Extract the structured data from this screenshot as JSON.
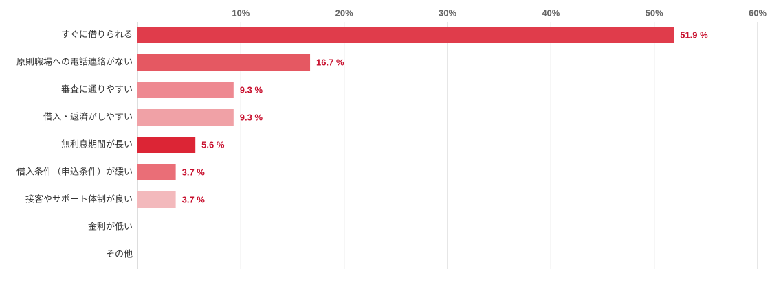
{
  "chart_data": {
    "type": "bar",
    "orientation": "horizontal",
    "categories": [
      "すぐに借りられる",
      "原則職場への電話連絡がない",
      "審査に通りやすい",
      "借入・返済がしやすい",
      "無利息期間が長い",
      "借入条件（申込条件）が緩い",
      "接客やサポート体制が良い",
      "金利が低い",
      "その他"
    ],
    "values": [
      51.9,
      16.7,
      9.3,
      9.3,
      5.6,
      3.7,
      3.7,
      null,
      null
    ],
    "value_labels": [
      "51.9 %",
      "16.7 %",
      "9.3 %",
      "9.3 %",
      "5.6 %",
      "3.7 %",
      "3.7 %",
      null,
      null
    ],
    "colors": [
      "#e03c4b",
      "#e55862",
      "#ee8991",
      "#f0a1a6",
      "#dc2535",
      "#ea6e77",
      "#f3b9bc",
      null,
      null
    ],
    "xlim": [
      0,
      60
    ],
    "xticks": [
      {
        "value": 10,
        "label": "10%"
      },
      {
        "value": 20,
        "label": "20%"
      },
      {
        "value": 30,
        "label": "30%"
      },
      {
        "value": 40,
        "label": "40%"
      },
      {
        "value": 50,
        "label": "50%"
      },
      {
        "value": 60,
        "label": "60%"
      }
    ],
    "grid": true
  }
}
